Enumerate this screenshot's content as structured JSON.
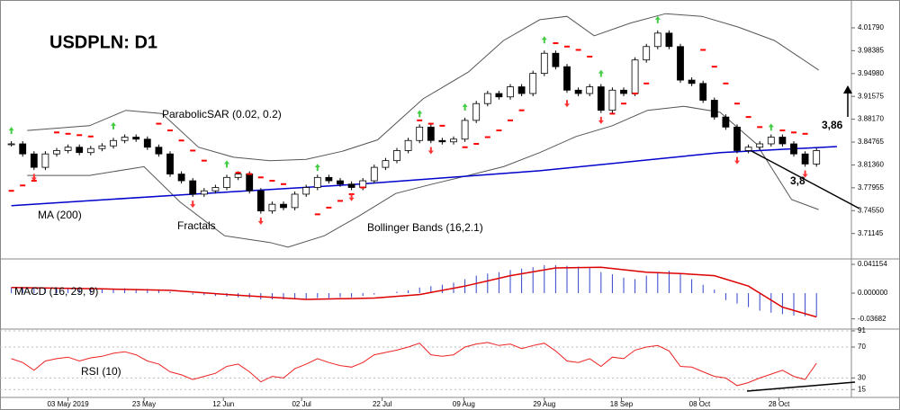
{
  "chart_data": {
    "type": "candlestick",
    "title": "USDPLN: D1",
    "annotations": [
      "ParabolicSAR (0.02, 0.2)",
      "MA (200)",
      "Fractals",
      "Bollinger Bands (16,2.1)",
      "3,86",
      "3,8"
    ],
    "xlim": [
      -1,
      74
    ],
    "xticks": [
      {
        "value": 5,
        "label": "03 May 2019"
      },
      {
        "value": 11.7,
        "label": "23 May"
      },
      {
        "value": 18.7,
        "label": "12 Jun"
      },
      {
        "value": 25.6,
        "label": "02 Jul"
      },
      {
        "value": 32.7,
        "label": "22 Jul"
      },
      {
        "value": 39.9,
        "label": "09 Aug"
      },
      {
        "value": 47,
        "label": "29 Aug"
      },
      {
        "value": 53.8,
        "label": "18 Sep"
      },
      {
        "value": 60.7,
        "label": "08 Oct"
      },
      {
        "value": 67.7,
        "label": "28 Oct"
      }
    ],
    "ylim": [
      3.6735,
      4.054
    ],
    "yticks": [
      {
        "value": 4.0179,
        "label": "4.01790"
      },
      3.98385,
      {
        "value": 3.9498,
        "label": "3.94980"
      },
      3.91575,
      {
        "value": 3.8817,
        "label": "3.88170"
      },
      3.84765,
      {
        "value": 3.8136,
        "label": "3.81360"
      },
      3.77955,
      {
        "value": 3.7455,
        "label": "3.74550"
      },
      3.71145
    ],
    "close": [
      3.845,
      3.83,
      3.81,
      3.83,
      3.835,
      3.84,
      3.832,
      3.838,
      3.842,
      3.85,
      3.855,
      3.852,
      3.84,
      3.83,
      3.8,
      3.79,
      3.77,
      3.775,
      3.78,
      3.795,
      3.8,
      3.775,
      3.745,
      3.755,
      3.75,
      3.77,
      3.78,
      3.795,
      3.79,
      3.785,
      3.78,
      3.79,
      3.81,
      3.82,
      3.835,
      3.85,
      3.87,
      3.85,
      3.848,
      3.852,
      3.88,
      3.905,
      3.92,
      3.915,
      3.93,
      3.92,
      3.95,
      3.98,
      3.96,
      3.925,
      3.92,
      3.93,
      3.895,
      3.925,
      3.92,
      3.97,
      3.99,
      4.01,
      3.99,
      3.94,
      3.935,
      3.91,
      3.885,
      3.87,
      3.835,
      3.84,
      3.845,
      3.855,
      3.845,
      3.83,
      3.815,
      3.835
    ],
    "ma": {
      "color": "#0000cc",
      "x": [
        0,
        15,
        30.7,
        46.6,
        62.5,
        72.8
      ],
      "values": [
        3.753,
        3.769,
        3.785,
        3.805,
        3.832,
        3.841
      ]
    },
    "bollinger_upper": {
      "color": "#555555",
      "x": [
        1.4,
        6.9,
        10.1,
        13.3,
        16.5,
        19.6,
        22.8,
        26,
        29.2,
        32.3,
        36.3,
        40.3,
        43.4,
        46.6,
        49,
        51.4,
        54.6,
        57.7,
        60.9,
        64.1,
        67.3,
        71.2
      ],
      "values": [
        3.865,
        3.872,
        3.895,
        3.89,
        3.84,
        3.825,
        3.82,
        3.822,
        3.834,
        3.851,
        3.912,
        3.952,
        3.999,
        4.03,
        4.035,
        4.006,
        4.025,
        4.039,
        4.035,
        4.019,
        3.999,
        3.955
      ]
    },
    "bollinger_lower": {
      "color": "#555555",
      "x": [
        1.4,
        6.9,
        11.7,
        14.9,
        18.8,
        22.8,
        24.4,
        27.6,
        30.7,
        33.9,
        37.1,
        40.3,
        43.4,
        46.6,
        49.8,
        53,
        56.1,
        59.3,
        62.5,
        65.7,
        68.8,
        71.2
      ],
      "values": [
        3.798,
        3.798,
        3.811,
        3.758,
        3.708,
        3.698,
        3.691,
        3.708,
        3.738,
        3.771,
        3.785,
        3.798,
        3.811,
        3.832,
        3.856,
        3.872,
        3.895,
        3.901,
        3.892,
        3.845,
        3.762,
        3.747
      ]
    },
    "sar": {
      "color": "#ff0000",
      "x": [
        0,
        1,
        2,
        4,
        5,
        6,
        7,
        13,
        14,
        15,
        16,
        17,
        20,
        21,
        22,
        23,
        24,
        27,
        28,
        29,
        30,
        31,
        36,
        37,
        38,
        40,
        41,
        42,
        43,
        44,
        45,
        48,
        49,
        50,
        51,
        53,
        54,
        55,
        56,
        61,
        62,
        63,
        64,
        65,
        66,
        68,
        69,
        70
      ],
      "values": [
        3.775,
        3.783,
        3.79,
        3.862,
        3.86,
        3.858,
        3.856,
        3.875,
        3.865,
        3.85,
        3.835,
        3.82,
        3.802,
        3.8,
        3.795,
        3.79,
        3.785,
        3.74,
        3.75,
        3.76,
        3.77,
        3.78,
        3.88,
        3.875,
        3.872,
        3.84,
        3.845,
        3.855,
        3.865,
        3.88,
        3.895,
        3.995,
        3.99,
        3.985,
        3.975,
        3.89,
        3.905,
        3.92,
        3.935,
        3.985,
        3.96,
        3.935,
        3.905,
        3.885,
        3.87,
        3.865,
        3.862,
        3.86
      ]
    },
    "fractals_up": {
      "color": "#44cc44",
      "x": [
        0,
        9,
        19,
        27,
        36,
        40,
        47,
        52,
        57,
        67
      ],
      "values": [
        3.865,
        3.872,
        3.815,
        3.81,
        3.89,
        3.9,
        4.0,
        3.95,
        4.03,
        3.87
      ]
    },
    "fractals_down": {
      "color": "#ff3333",
      "x": [
        2,
        16,
        22,
        30,
        37,
        49,
        52,
        64,
        70
      ],
      "values": [
        3.795,
        3.755,
        3.73,
        3.765,
        3.835,
        3.905,
        3.88,
        3.82,
        3.8
      ]
    },
    "macd": {
      "title": "MACD (16, 29, 9)",
      "ylim": [
        -0.0514,
        0.0463
      ],
      "yticks": [
        {
          "value": 0.041154,
          "label": "0.041154"
        },
        {
          "value": 0,
          "label": "0.000000"
        },
        {
          "value": -0.03682,
          "label": "-0.03682"
        }
      ],
      "histogram": {
        "color": "#3344cc",
        "values": [
          0.008,
          0.008,
          0.007,
          0.007,
          0.008,
          0.008,
          0.007,
          0.007,
          0.007,
          0.006,
          0.007,
          0.006,
          0.006,
          0.005,
          0.002,
          0.0,
          -0.002,
          -0.003,
          -0.004,
          -0.005,
          -0.006,
          -0.007,
          -0.009,
          -0.009,
          -0.009,
          -0.008,
          -0.008,
          -0.007,
          -0.007,
          -0.006,
          -0.006,
          -0.004,
          -0.002,
          0.0,
          0.002,
          0.004,
          0.008,
          0.01,
          0.012,
          0.015,
          0.02,
          0.025,
          0.028,
          0.03,
          0.033,
          0.035,
          0.037,
          0.04,
          0.04,
          0.039,
          0.038,
          0.036,
          0.03,
          0.027,
          0.022,
          0.02,
          0.025,
          0.03,
          0.032,
          0.028,
          0.02,
          0.012,
          0.005,
          -0.01,
          -0.015,
          -0.02,
          -0.025,
          -0.028,
          -0.03,
          -0.032,
          -0.033,
          -0.033
        ]
      },
      "signal": {
        "color": "#dd0000",
        "x": [
          0,
          8,
          14,
          20,
          26,
          32,
          36,
          40,
          44,
          48,
          52,
          56,
          59,
          62,
          65,
          68,
          71
        ],
        "values": [
          0.008,
          0.006,
          0.004,
          -0.003,
          -0.009,
          -0.007,
          -0.002,
          0.01,
          0.025,
          0.036,
          0.037,
          0.03,
          0.028,
          0.025,
          0.01,
          -0.02,
          -0.034
        ]
      }
    },
    "rsi": {
      "title": "RSI (10)",
      "ylim": [
        4.8,
        93.3
      ],
      "yticks": [
        91,
        70,
        30,
        15
      ],
      "color": "#ee2222",
      "values": [
        55,
        50,
        40,
        52,
        55,
        57,
        52,
        56,
        58,
        62,
        64,
        60,
        52,
        48,
        38,
        34,
        28,
        32,
        36,
        45,
        48,
        38,
        25,
        32,
        30,
        42,
        48,
        55,
        50,
        46,
        44,
        50,
        60,
        63,
        66,
        70,
        75,
        60,
        58,
        60,
        70,
        74,
        76,
        72,
        74,
        68,
        72,
        75,
        65,
        52,
        50,
        55,
        45,
        57,
        55,
        66,
        70,
        72,
        65,
        45,
        44,
        38,
        32,
        30,
        20,
        24,
        30,
        35,
        40,
        32,
        28,
        49
      ]
    }
  }
}
